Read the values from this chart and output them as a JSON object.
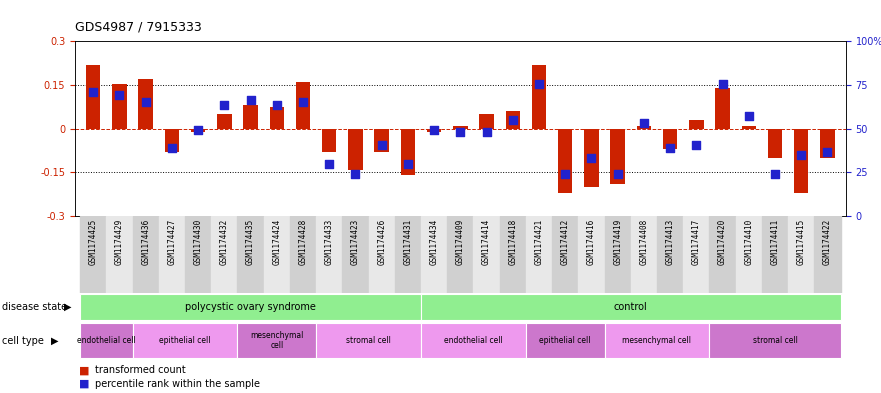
{
  "title": "GDS4987 / 7915333",
  "samples": [
    "GSM1174425",
    "GSM1174429",
    "GSM1174436",
    "GSM1174427",
    "GSM1174430",
    "GSM1174432",
    "GSM1174435",
    "GSM1174424",
    "GSM1174428",
    "GSM1174433",
    "GSM1174423",
    "GSM1174426",
    "GSM1174431",
    "GSM1174434",
    "GSM1174409",
    "GSM1174414",
    "GSM1174418",
    "GSM1174421",
    "GSM1174412",
    "GSM1174416",
    "GSM1174419",
    "GSM1174408",
    "GSM1174413",
    "GSM1174417",
    "GSM1174420",
    "GSM1174410",
    "GSM1174411",
    "GSM1174415",
    "GSM1174422"
  ],
  "red_bars": [
    0.22,
    0.155,
    0.17,
    -0.08,
    -0.01,
    0.05,
    0.08,
    0.075,
    0.16,
    -0.08,
    -0.14,
    -0.08,
    -0.16,
    -0.01,
    0.01,
    0.05,
    0.06,
    0.22,
    -0.22,
    -0.2,
    -0.19,
    0.01,
    -0.07,
    0.03,
    0.14,
    0.01,
    -0.1,
    -0.22,
    -0.1
  ],
  "blue_dots": [
    0.125,
    0.115,
    0.09,
    -0.065,
    -0.005,
    0.08,
    0.1,
    0.08,
    0.09,
    -0.12,
    -0.155,
    -0.055,
    -0.12,
    -0.005,
    -0.01,
    -0.01,
    0.03,
    0.155,
    -0.155,
    -0.1,
    -0.155,
    0.02,
    -0.065,
    -0.055,
    0.155,
    0.045,
    -0.155,
    -0.09,
    -0.08
  ],
  "ylim": [
    -0.3,
    0.3
  ],
  "yticks_red": [
    -0.3,
    -0.15,
    0.0,
    0.15,
    0.3
  ],
  "ytick_labels_red": [
    "-0.3",
    "-0.15",
    "0",
    "0.15",
    "0.3"
  ],
  "yticks_blue_norm": [
    -0.3,
    -0.15,
    0.0,
    0.15,
    0.3
  ],
  "ytick_labels_blue": [
    "0",
    "25",
    "50",
    "75",
    "100%"
  ],
  "dotted_lines": [
    -0.15,
    0.15
  ],
  "zero_line_color": "#CC2200",
  "red_color": "#CC2200",
  "blue_color": "#2222CC",
  "background_color": "#FFFFFF",
  "bar_width": 0.55,
  "dot_size": 28,
  "title_fontsize": 9,
  "tick_fontsize": 7,
  "sample_fontsize": 5.5,
  "annotation_fontsize": 7,
  "ds_groups": [
    {
      "label": "polycystic ovary syndrome",
      "start": 0,
      "end": 13
    },
    {
      "label": "control",
      "start": 13,
      "end": 29
    }
  ],
  "ct_groups": [
    {
      "label": "endothelial cell",
      "start": 0,
      "end": 2,
      "color": "#CC77CC"
    },
    {
      "label": "epithelial cell",
      "start": 2,
      "end": 6,
      "color": "#EE99EE"
    },
    {
      "label": "mesenchymal\ncell",
      "start": 6,
      "end": 9,
      "color": "#CC77CC"
    },
    {
      "label": "stromal cell",
      "start": 9,
      "end": 13,
      "color": "#EE99EE"
    },
    {
      "label": "endothelial cell",
      "start": 13,
      "end": 17,
      "color": "#EE99EE"
    },
    {
      "label": "epithelial cell",
      "start": 17,
      "end": 20,
      "color": "#CC77CC"
    },
    {
      "label": "mesenchymal cell",
      "start": 20,
      "end": 24,
      "color": "#EE99EE"
    },
    {
      "label": "stromal cell",
      "start": 24,
      "end": 29,
      "color": "#CC77CC"
    }
  ],
  "ds_color": "#90EE90",
  "xtick_bg_even": "#D0D0D0",
  "xtick_bg_odd": "#E8E8E8"
}
